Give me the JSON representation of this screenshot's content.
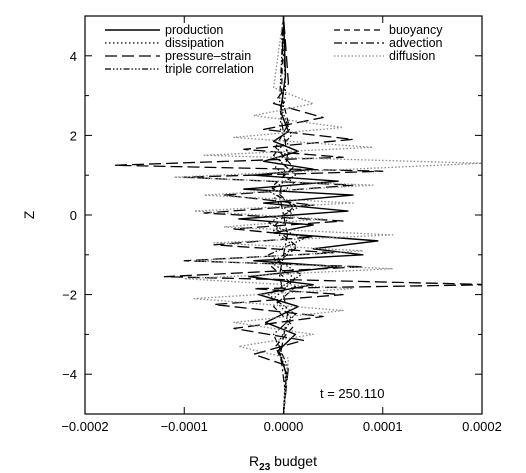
{
  "chart_data": {
    "type": "line",
    "title": "",
    "xlabel_main": "R",
    "xlabel_sub": "23",
    "xlabel_rest": " budget",
    "ylabel": "Z",
    "xlim": [
      -0.0002,
      0.0002
    ],
    "ylim": [
      -5,
      5
    ],
    "x_ticks": [
      -0.0002,
      -0.0001,
      0.0,
      0.0001,
      0.0002
    ],
    "x_tick_labels": [
      "−0.0002",
      "−0.0001",
      "0.0000",
      "0.0001",
      "0.0002"
    ],
    "y_ticks": [
      -4,
      -2,
      0,
      2,
      4
    ],
    "y_tick_labels": [
      "−4",
      "−2",
      "0",
      "2",
      "4"
    ],
    "grid": false,
    "legend_placement": "top",
    "annotation": "t = 250.110",
    "series": [
      {
        "name": "production",
        "dash": "solid",
        "color": "#000000",
        "width": 1.4,
        "points": [
          [
            0,
            -5
          ],
          [
            3e-06,
            -4
          ],
          [
            -5e-06,
            -3.4
          ],
          [
            1.2e-05,
            -3.0
          ],
          [
            -1.8e-05,
            -2.7
          ],
          [
            1.5e-05,
            -2.3
          ],
          [
            -2.5e-05,
            -2.0
          ],
          [
            3e-05,
            -1.75
          ],
          [
            -3.5e-05,
            -1.55
          ],
          [
            5.5e-05,
            -1.3
          ],
          [
            -3e-05,
            -1.15
          ],
          [
            8e-05,
            -1.0
          ],
          [
            3e-05,
            -0.85
          ],
          [
            9.5e-05,
            -0.65
          ],
          [
            -1e-05,
            -0.45
          ],
          [
            3e-05,
            -0.25
          ],
          [
            -4.5e-05,
            -0.1
          ],
          [
            6.5e-05,
            0.1
          ],
          [
            -2e-05,
            0.3
          ],
          [
            7e-05,
            0.5
          ],
          [
            -4e-05,
            0.65
          ],
          [
            5.5e-05,
            0.85
          ],
          [
            -3e-05,
            1.0
          ],
          [
            3e-05,
            1.15
          ],
          [
            -2e-05,
            1.35
          ],
          [
            1.5e-05,
            1.6
          ],
          [
            -1e-05,
            1.85
          ],
          [
            5e-06,
            2.1
          ],
          [
            -3e-06,
            2.6
          ],
          [
            2e-06,
            3.5
          ],
          [
            0,
            5
          ]
        ]
      },
      {
        "name": "dissipation",
        "dash": "1.5,2.5",
        "color": "#000000",
        "width": 1.3,
        "points": [
          [
            0,
            -5
          ],
          [
            2e-06,
            -4
          ],
          [
            -5e-06,
            -3.2
          ],
          [
            8e-06,
            -2.6
          ],
          [
            -1e-05,
            -2.1
          ],
          [
            1.2e-05,
            -1.6
          ],
          [
            -1.2e-05,
            -1.2
          ],
          [
            1.2e-05,
            -0.8
          ],
          [
            -1e-05,
            -0.4
          ],
          [
            1e-05,
            0.0
          ],
          [
            -1e-05,
            0.4
          ],
          [
            1e-05,
            0.8
          ],
          [
            -8e-06,
            1.2
          ],
          [
            6e-06,
            1.7
          ],
          [
            -4e-06,
            2.2
          ],
          [
            2e-06,
            3
          ],
          [
            0,
            5
          ]
        ]
      },
      {
        "name": "pressure–strain",
        "dash": "12,5",
        "color": "#000000",
        "width": 1.3,
        "points": [
          [
            0,
            -5
          ],
          [
            5e-06,
            -3.8
          ],
          [
            -3e-05,
            -3.5
          ],
          [
            2e-05,
            -3.15
          ],
          [
            -5e-05,
            -2.85
          ],
          [
            4e-05,
            -2.55
          ],
          [
            -7e-05,
            -2.25
          ],
          [
            6e-05,
            -2.0
          ],
          [
            -3e-05,
            -1.85
          ],
          [
            0.00021,
            -1.75
          ],
          [
            -0.00012,
            -1.55
          ],
          [
            8e-05,
            -1.3
          ],
          [
            -0.0001,
            -1.15
          ],
          [
            5e-05,
            -0.95
          ],
          [
            -7e-05,
            -0.75
          ],
          [
            3e-05,
            -0.55
          ],
          [
            -5e-05,
            -0.35
          ],
          [
            6e-05,
            -0.15
          ],
          [
            -8e-05,
            0.05
          ],
          [
            3e-05,
            0.25
          ],
          [
            -6e-05,
            0.5
          ],
          [
            7e-05,
            0.75
          ],
          [
            -0.0001,
            0.95
          ],
          [
            0.0001,
            1.1
          ],
          [
            -0.00017,
            1.25
          ],
          [
            6e-05,
            1.45
          ],
          [
            -4e-05,
            1.65
          ],
          [
            7e-05,
            1.9
          ],
          [
            -2e-05,
            2.15
          ],
          [
            4e-05,
            2.45
          ],
          [
            -1e-05,
            2.8
          ],
          [
            5e-06,
            3.3
          ],
          [
            0,
            5
          ]
        ]
      },
      {
        "name": "triple correlation",
        "dash": "6,2,1.5,2,1.5,2,1.5,2",
        "color": "#000000",
        "width": 1.2,
        "points": [
          [
            0,
            -5
          ],
          [
            4e-06,
            -3.8
          ],
          [
            -1e-05,
            -3.0
          ],
          [
            1.2e-05,
            -2.5
          ],
          [
            -1.5e-05,
            -2.0
          ],
          [
            1.8e-05,
            -1.5
          ],
          [
            -1.5e-05,
            -1.0
          ],
          [
            2e-05,
            -0.6
          ],
          [
            -1.5e-05,
            -0.2
          ],
          [
            1.5e-05,
            0.2
          ],
          [
            -1.5e-05,
            0.6
          ],
          [
            1.2e-05,
            1.0
          ],
          [
            -1e-05,
            1.5
          ],
          [
            8e-06,
            2.0
          ],
          [
            -4e-06,
            2.8
          ],
          [
            0,
            5
          ]
        ]
      },
      {
        "name": "buoyancy",
        "dash": "6,4",
        "color": "#000000",
        "width": 1.2,
        "points": [
          [
            0,
            -5
          ],
          [
            3e-06,
            -4
          ],
          [
            -8e-06,
            -3.3
          ],
          [
            1e-05,
            -2.8
          ],
          [
            -1e-05,
            -2.3
          ],
          [
            1.2e-05,
            -1.8
          ],
          [
            -1.2e-05,
            -1.3
          ],
          [
            1.4e-05,
            -0.8
          ],
          [
            -1e-05,
            -0.3
          ],
          [
            1e-05,
            0.2
          ],
          [
            -1.2e-05,
            0.7
          ],
          [
            1e-05,
            1.2
          ],
          [
            -8e-06,
            1.7
          ],
          [
            5e-06,
            2.3
          ],
          [
            -2e-06,
            3
          ],
          [
            0,
            5
          ]
        ]
      },
      {
        "name": "advection",
        "dash": "8,3,2,3",
        "color": "#000000",
        "width": 1.2,
        "points": [
          [
            0,
            -5
          ],
          [
            2e-06,
            -4.5
          ],
          [
            -3e-06,
            -3.5
          ],
          [
            4e-06,
            -2.5
          ],
          [
            -4e-06,
            -1.5
          ],
          [
            4e-06,
            -0.5
          ],
          [
            -4e-06,
            0.5
          ],
          [
            4e-06,
            1.5
          ],
          [
            -3e-06,
            2.5
          ],
          [
            2e-06,
            3.5
          ],
          [
            -2e-06,
            4.5
          ],
          [
            0,
            5
          ]
        ]
      },
      {
        "name": "diffusion",
        "dash": "1.5,2",
        "color": "#8a8a8a",
        "width": 1.3,
        "points": [
          [
            0,
            -5
          ],
          [
            5e-06,
            -3.6
          ],
          [
            -4.5e-05,
            -3.3
          ],
          [
            3e-05,
            -3.0
          ],
          [
            -5e-05,
            -2.7
          ],
          [
            6e-05,
            -2.4
          ],
          [
            -9e-05,
            -2.1
          ],
          [
            7e-05,
            -1.85
          ],
          [
            -0.0001,
            -1.6
          ],
          [
            0.00011,
            -1.35
          ],
          [
            -9e-05,
            -1.15
          ],
          [
            8e-05,
            -0.9
          ],
          [
            -7e-05,
            -0.7
          ],
          [
            0.00011,
            -0.5
          ],
          [
            -6e-05,
            -0.3
          ],
          [
            4e-05,
            -0.1
          ],
          [
            -9e-05,
            0.1
          ],
          [
            7e-05,
            0.3
          ],
          [
            -8e-05,
            0.5
          ],
          [
            9e-05,
            0.75
          ],
          [
            -0.00011,
            0.95
          ],
          [
            0.0002,
            1.3
          ],
          [
            -8e-05,
            1.5
          ],
          [
            9e-05,
            1.7
          ],
          [
            -5e-05,
            1.95
          ],
          [
            6e-05,
            2.2
          ],
          [
            -3e-05,
            2.5
          ],
          [
            3e-05,
            2.8
          ],
          [
            -1e-05,
            3.2
          ],
          [
            0,
            5
          ]
        ]
      }
    ]
  }
}
